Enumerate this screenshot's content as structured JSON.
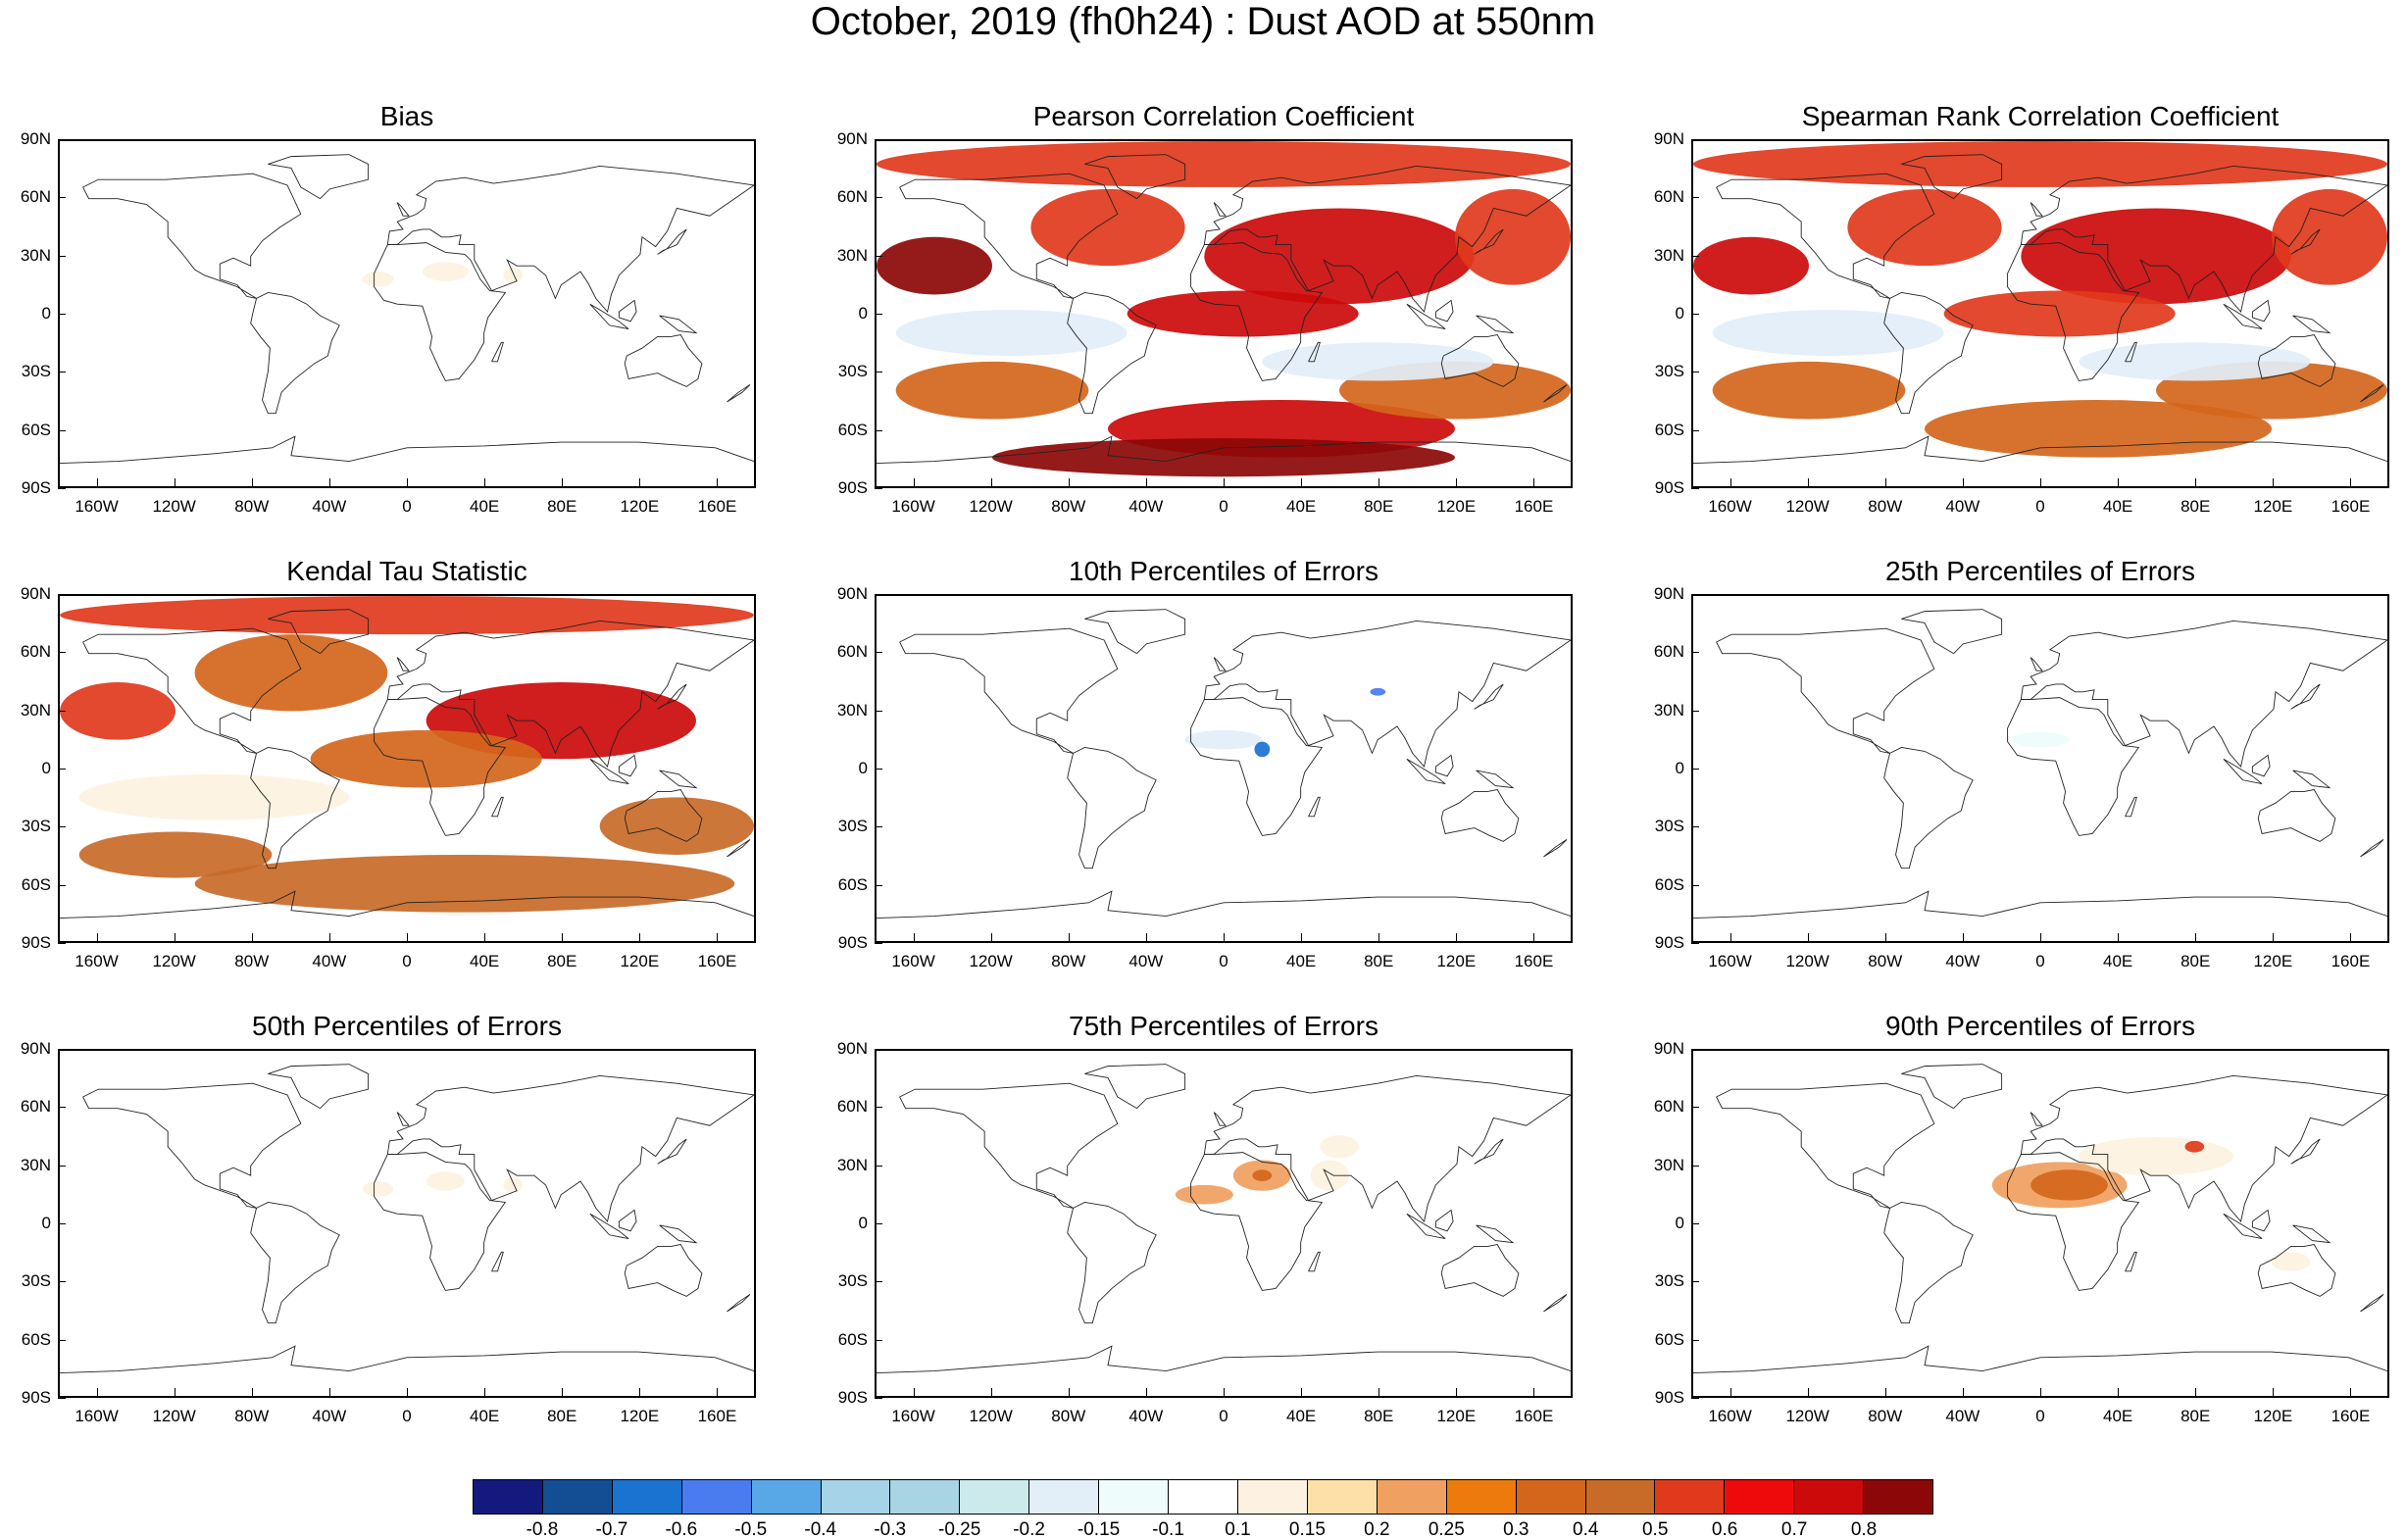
{
  "title": "October, 2019 (fh0h24) : Dust AOD at 550nm",
  "lat_labels": [
    "90N",
    "60N",
    "30N",
    "0",
    "30S",
    "60S",
    "90S"
  ],
  "lon_labels": [
    "160W",
    "120W",
    "80W",
    "40W",
    "0",
    "40E",
    "80E",
    "120E",
    "160E"
  ],
  "panels": [
    {
      "title": "Bias",
      "field": "bias"
    },
    {
      "title": "Pearson Correlation Coefficient",
      "field": "corr_pearson"
    },
    {
      "title": "Spearman Rank Correlation Coefficient",
      "field": "corr_spearman"
    },
    {
      "title": "Kendal Tau Statistic",
      "field": "corr_kendall"
    },
    {
      "title": "10th Percentiles of Errors",
      "field": "p10"
    },
    {
      "title": "25th Percentiles of Errors",
      "field": "p25"
    },
    {
      "title": "50th Percentiles of Errors",
      "field": "p50"
    },
    {
      "title": "75th Percentiles of Errors",
      "field": "p75"
    },
    {
      "title": "90th Percentiles of Errors",
      "field": "p90"
    }
  ],
  "colorbar": {
    "labels": [
      "-0.8",
      "-0.7",
      "-0.6",
      "-0.5",
      "-0.4",
      "-0.3",
      "-0.25",
      "-0.2",
      "-0.15",
      "-0.1",
      "0.1",
      "0.15",
      "0.2",
      "0.25",
      "0.3",
      "0.4",
      "0.5",
      "0.6",
      "0.7",
      "0.8"
    ],
    "colors": [
      "#14197e",
      "#134e94",
      "#1a72d1",
      "#4a7cf0",
      "#58a8e8",
      "#a6d3e8",
      "#a9d4e4",
      "#cce9ec",
      "#e2eef8",
      "#eefcfc",
      "#ffffff",
      "#fdf2e1",
      "#fde0a8",
      "#f0a060",
      "#ec7a0c",
      "#d4661c",
      "#c86a28",
      "#e03a1c",
      "#ee0a0a",
      "#cc0a0a",
      "#8c0808"
    ]
  },
  "fields": {
    "bias": [
      {
        "lon": -15,
        "lat": 18,
        "rx": 8,
        "ry": 4,
        "color": "#fdf2e1"
      },
      {
        "lon": 20,
        "lat": 22,
        "rx": 12,
        "ry": 5,
        "color": "#fdf2e1"
      },
      {
        "lon": 55,
        "lat": 20,
        "rx": 5,
        "ry": 4,
        "color": "#fdf2e1"
      }
    ],
    "corr_pearson": [
      {
        "lon": 0,
        "lat": 78,
        "rx": 180,
        "ry": 12,
        "color": "#e03a1c"
      },
      {
        "lon": -150,
        "lat": 25,
        "rx": 30,
        "ry": 15,
        "color": "#8c0808"
      },
      {
        "lon": 60,
        "lat": 30,
        "rx": 70,
        "ry": 25,
        "color": "#cc0a0a"
      },
      {
        "lon": -60,
        "lat": 45,
        "rx": 40,
        "ry": 20,
        "color": "#e03a1c"
      },
      {
        "lon": 10,
        "lat": 0,
        "rx": 60,
        "ry": 12,
        "color": "#cc0a0a"
      },
      {
        "lon": 150,
        "lat": 40,
        "rx": 30,
        "ry": 25,
        "color": "#e03a1c"
      },
      {
        "lon": 30,
        "lat": -60,
        "rx": 90,
        "ry": 15,
        "color": "#cc0a0a"
      },
      {
        "lon": 0,
        "lat": -75,
        "rx": 120,
        "ry": 10,
        "color": "#8c0808"
      },
      {
        "lon": -120,
        "lat": -40,
        "rx": 50,
        "ry": 15,
        "color": "#d4661c"
      },
      {
        "lon": 120,
        "lat": -40,
        "rx": 60,
        "ry": 15,
        "color": "#d4661c"
      },
      {
        "lon": -110,
        "lat": -10,
        "rx": 60,
        "ry": 12,
        "color": "#e2eef8"
      },
      {
        "lon": 80,
        "lat": -25,
        "rx": 60,
        "ry": 10,
        "color": "#e2eef8"
      }
    ],
    "corr_spearman": [
      {
        "lon": 0,
        "lat": 78,
        "rx": 180,
        "ry": 12,
        "color": "#e03a1c"
      },
      {
        "lon": -150,
        "lat": 25,
        "rx": 30,
        "ry": 15,
        "color": "#cc0a0a"
      },
      {
        "lon": 60,
        "lat": 30,
        "rx": 70,
        "ry": 25,
        "color": "#cc0a0a"
      },
      {
        "lon": -60,
        "lat": 45,
        "rx": 40,
        "ry": 20,
        "color": "#e03a1c"
      },
      {
        "lon": 10,
        "lat": 0,
        "rx": 60,
        "ry": 12,
        "color": "#e03a1c"
      },
      {
        "lon": 150,
        "lat": 40,
        "rx": 30,
        "ry": 25,
        "color": "#e03a1c"
      },
      {
        "lon": 30,
        "lat": -60,
        "rx": 90,
        "ry": 15,
        "color": "#d4661c"
      },
      {
        "lon": -120,
        "lat": -40,
        "rx": 50,
        "ry": 15,
        "color": "#d4661c"
      },
      {
        "lon": 120,
        "lat": -40,
        "rx": 60,
        "ry": 15,
        "color": "#d4661c"
      },
      {
        "lon": -110,
        "lat": -10,
        "rx": 60,
        "ry": 12,
        "color": "#e2eef8"
      },
      {
        "lon": 80,
        "lat": -25,
        "rx": 60,
        "ry": 10,
        "color": "#e2eef8"
      }
    ],
    "corr_kendall": [
      {
        "lon": 0,
        "lat": 80,
        "rx": 180,
        "ry": 10,
        "color": "#e03a1c"
      },
      {
        "lon": -150,
        "lat": 30,
        "rx": 30,
        "ry": 15,
        "color": "#e03a1c"
      },
      {
        "lon": 80,
        "lat": 25,
        "rx": 70,
        "ry": 20,
        "color": "#cc0a0a"
      },
      {
        "lon": -60,
        "lat": 50,
        "rx": 50,
        "ry": 20,
        "color": "#d4661c"
      },
      {
        "lon": 10,
        "lat": 5,
        "rx": 60,
        "ry": 15,
        "color": "#d4661c"
      },
      {
        "lon": 30,
        "lat": -60,
        "rx": 140,
        "ry": 15,
        "color": "#c86a28"
      },
      {
        "lon": -120,
        "lat": -45,
        "rx": 50,
        "ry": 12,
        "color": "#c86a28"
      },
      {
        "lon": 140,
        "lat": -30,
        "rx": 40,
        "ry": 15,
        "color": "#c86a28"
      },
      {
        "lon": -100,
        "lat": -15,
        "rx": 70,
        "ry": 12,
        "color": "#fdf2e1"
      }
    ],
    "p10": [
      {
        "lon": 0,
        "lat": 15,
        "rx": 20,
        "ry": 5,
        "color": "#e2eef8"
      },
      {
        "lon": 20,
        "lat": 10,
        "rx": 4,
        "ry": 4,
        "color": "#1a72d1"
      },
      {
        "lon": 80,
        "lat": 40,
        "rx": 4,
        "ry": 2,
        "color": "#4a7cf0"
      }
    ],
    "p25": [
      {
        "lon": 0,
        "lat": 15,
        "rx": 15,
        "ry": 4,
        "color": "#eefcfc"
      }
    ],
    "p50": [
      {
        "lon": -15,
        "lat": 18,
        "rx": 8,
        "ry": 4,
        "color": "#fdf2e1"
      },
      {
        "lon": 20,
        "lat": 22,
        "rx": 10,
        "ry": 5,
        "color": "#fdf2e1"
      },
      {
        "lon": 55,
        "lat": 20,
        "rx": 5,
        "ry": 4,
        "color": "#fdf2e1"
      }
    ],
    "p75": [
      {
        "lon": -10,
        "lat": 15,
        "rx": 15,
        "ry": 5,
        "color": "#f0a060"
      },
      {
        "lon": 20,
        "lat": 25,
        "rx": 15,
        "ry": 8,
        "color": "#f0a060"
      },
      {
        "lon": 20,
        "lat": 25,
        "rx": 5,
        "ry": 3,
        "color": "#d4661c"
      },
      {
        "lon": 55,
        "lat": 25,
        "rx": 10,
        "ry": 8,
        "color": "#fdf2e1"
      },
      {
        "lon": 60,
        "lat": 40,
        "rx": 10,
        "ry": 6,
        "color": "#fdf2e1"
      }
    ],
    "p90": [
      {
        "lon": 10,
        "lat": 20,
        "rx": 35,
        "ry": 12,
        "color": "#f0a060"
      },
      {
        "lon": 15,
        "lat": 20,
        "rx": 20,
        "ry": 8,
        "color": "#d4661c"
      },
      {
        "lon": 60,
        "lat": 35,
        "rx": 40,
        "ry": 10,
        "color": "#fdf2e1"
      },
      {
        "lon": 80,
        "lat": 40,
        "rx": 5,
        "ry": 3,
        "color": "#e03a1c"
      },
      {
        "lon": 130,
        "lat": -20,
        "rx": 10,
        "ry": 5,
        "color": "#fdf2e1"
      }
    ]
  }
}
